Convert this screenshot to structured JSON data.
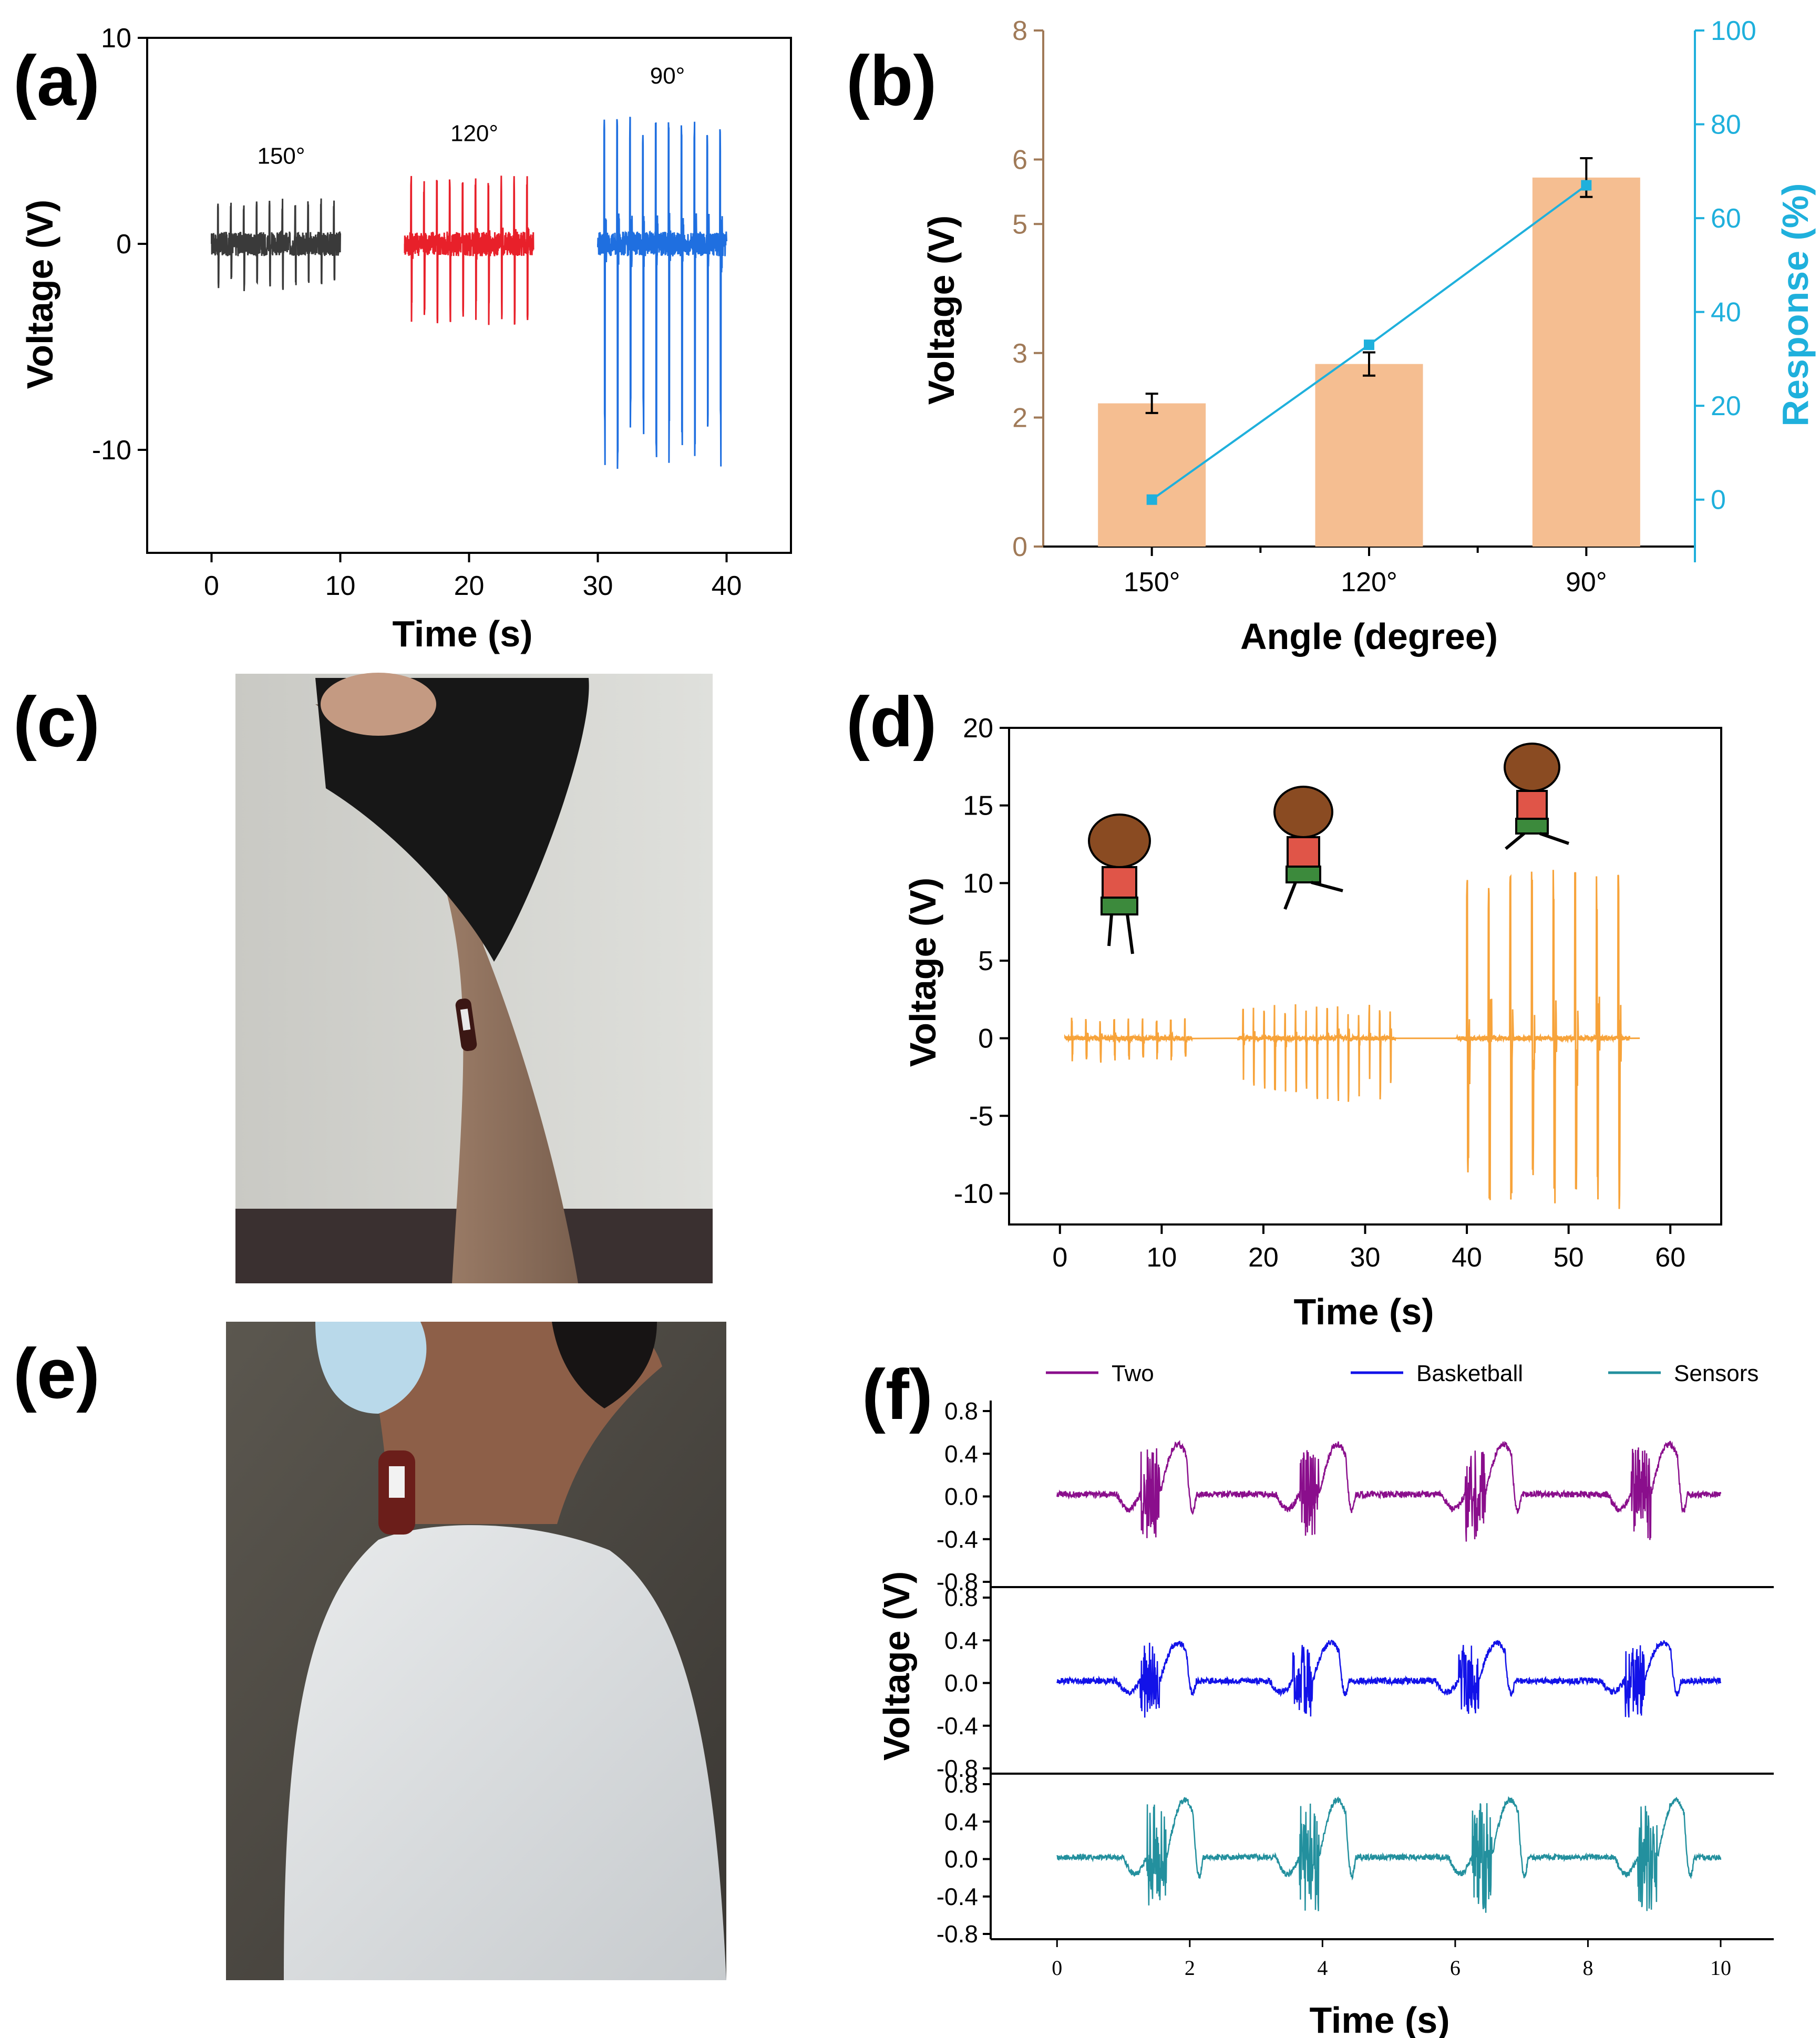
{
  "panel_labels": {
    "a": "(a)",
    "b": "(b)",
    "c": "(c)",
    "d": "(d)",
    "e": "(e)",
    "f": "(f)"
  },
  "colors": {
    "gray": "#3a3a3a",
    "red": "#e8202a",
    "blue": "#1f6fe0",
    "bar": "#f5be91",
    "bar_axis": "#a07a58",
    "cyan": "#1fb0dc",
    "orange": "#f7a33a",
    "purple": "#8a0e8c",
    "navy_blue": "#1212e8",
    "teal": "#23909e"
  },
  "photo_c": {
    "icon": "photo-knee-sensor"
  },
  "photo_e": {
    "icon": "photo-neck-sensor"
  },
  "chart_data": [
    {
      "panel": "a",
      "type": "line",
      "xlabel": "Time (s)",
      "ylabel": "Voltage (V)",
      "xlim": [
        -5,
        45
      ],
      "ylim": [
        -15,
        10
      ],
      "xticks": [
        0,
        10,
        20,
        30,
        40
      ],
      "yticks": [
        -10,
        0,
        10
      ],
      "annotations": [
        "150°",
        "120°",
        "90°"
      ],
      "series": [
        {
          "name": "150°",
          "color": "#3a3a3a",
          "t_start": 0,
          "t_end": 10,
          "peaks": 10,
          "pos_amp": 2.1,
          "neg_amp": -2.2
        },
        {
          "name": "120°",
          "color": "#e8202a",
          "t_start": 15,
          "t_end": 25,
          "peaks": 10,
          "pos_amp": 3.2,
          "neg_amp": -3.8
        },
        {
          "name": "90°",
          "color": "#1f6fe0",
          "t_start": 30,
          "t_end": 40,
          "peaks": 10,
          "pos_amp": 6.0,
          "neg_amp": -10.5
        }
      ]
    },
    {
      "panel": "b",
      "type": "bar",
      "xlabel": "Angle (degree)",
      "ylabel": "Voltage (V)",
      "ylabel_right": "Response (%)",
      "categories": [
        "150°",
        "120°",
        "90°"
      ],
      "ylim": [
        0,
        8
      ],
      "ylim_right": [
        -10,
        100
      ],
      "yticks": [
        0,
        2,
        3,
        5,
        6,
        8
      ],
      "yticks_right": [
        0,
        20,
        40,
        60,
        80,
        100
      ],
      "values": [
        2.22,
        2.83,
        5.72
      ],
      "errors": [
        0.15,
        0.18,
        0.3
      ],
      "response": [
        0,
        33,
        67
      ]
    },
    {
      "panel": "d",
      "type": "line",
      "xlabel": "Time (s)",
      "ylabel": "Voltage (V)",
      "xlim": [
        -5,
        65
      ],
      "ylim": [
        -12,
        20
      ],
      "xticks": [
        0,
        10,
        20,
        30,
        40,
        50,
        60
      ],
      "yticks": [
        -10,
        -5,
        0,
        5,
        10,
        15,
        20
      ],
      "series": [
        {
          "name": "walk",
          "color": "#f7a33a",
          "t_start": 0.5,
          "t_end": 13,
          "peaks": 9,
          "pos_amp": 1.3,
          "neg_amp": -1.5
        },
        {
          "name": "run",
          "color": "#f7a33a",
          "t_start": 17.5,
          "t_end": 33,
          "peaks": 15,
          "pos_amp": 2.1,
          "neg_amp": -4.0
        },
        {
          "name": "jump",
          "color": "#f7a33a",
          "t_start": 39,
          "t_end": 56,
          "peaks": 8,
          "pos_amp": 10.5,
          "neg_amp": -10.5
        }
      ]
    },
    {
      "panel": "f",
      "type": "line",
      "xlabel": "Time (s)",
      "ylabel": "Voltage (V)",
      "xlim": [
        -1,
        10.8
      ],
      "ylim": [
        -0.8,
        0.8
      ],
      "xticks": [
        0,
        2,
        4,
        6,
        8,
        10
      ],
      "yticks": [
        "0.8",
        "0.4",
        "0.0",
        "-0.4",
        "-0.8"
      ],
      "legend": [
        "Two",
        "Basketball",
        "Sensors"
      ],
      "series": [
        {
          "name": "Two",
          "color": "#8a0e8c",
          "bursts": [
            1.5,
            3.9,
            6.4,
            8.9
          ],
          "amp": 0.55
        },
        {
          "name": "Basketball",
          "color": "#1212e8",
          "bursts": [
            1.5,
            3.8,
            6.3,
            8.8
          ],
          "amp": 0.42
        },
        {
          "name": "Sensors",
          "color": "#23909e",
          "bursts": [
            1.6,
            3.9,
            6.5,
            9.0
          ],
          "amp": 0.72
        }
      ]
    }
  ]
}
